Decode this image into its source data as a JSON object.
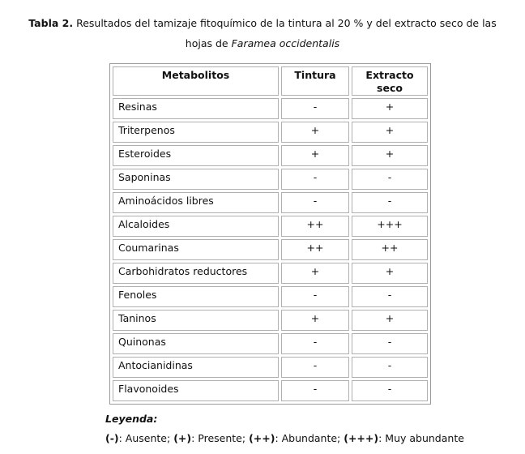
{
  "caption": {
    "label": "Tabla 2.",
    "text_line1": " Resultados del tamizaje fitoquímico de la tintura al 20 % y del extracto seco de las",
    "text_line2_prefix": "hojas de ",
    "species": "Faramea occidentalis"
  },
  "table": {
    "headers": [
      "Metabolitos",
      "Tintura",
      "Extracto seco"
    ],
    "rows": [
      {
        "metabolito": "Resinas",
        "tintura": "-",
        "extracto": "+"
      },
      {
        "metabolito": "Triterpenos",
        "tintura": "+",
        "extracto": "+"
      },
      {
        "metabolito": "Esteroides",
        "tintura": "+",
        "extracto": "+"
      },
      {
        "metabolito": "Saponinas",
        "tintura": "-",
        "extracto": "-"
      },
      {
        "metabolito": "Aminoácidos libres",
        "tintura": "-",
        "extracto": "-"
      },
      {
        "metabolito": "Alcaloides",
        "tintura": "++",
        "extracto": "+++"
      },
      {
        "metabolito": "Coumarinas",
        "tintura": "++",
        "extracto": "++"
      },
      {
        "metabolito": "Carbohidratos reductores",
        "tintura": "+",
        "extracto": "+"
      },
      {
        "metabolito": "Fenoles",
        "tintura": "-",
        "extracto": "-"
      },
      {
        "metabolito": "Taninos",
        "tintura": "+",
        "extracto": "+"
      },
      {
        "metabolito": "Quinonas",
        "tintura": "-",
        "extracto": "-"
      },
      {
        "metabolito": "Antocianidinas",
        "tintura": "-",
        "extracto": "-"
      },
      {
        "metabolito": "Flavonoides",
        "tintura": "-",
        "extracto": "-"
      }
    ]
  },
  "legend": {
    "title": "Leyenda:",
    "items": [
      {
        "symbol": "(-)",
        "meaning": ": Ausente; "
      },
      {
        "symbol": "(+)",
        "meaning": ": Presente; "
      },
      {
        "symbol": "(++)",
        "meaning": ": Abundante; "
      },
      {
        "symbol": "(+++)",
        "meaning": ": Muy abundante"
      }
    ]
  }
}
